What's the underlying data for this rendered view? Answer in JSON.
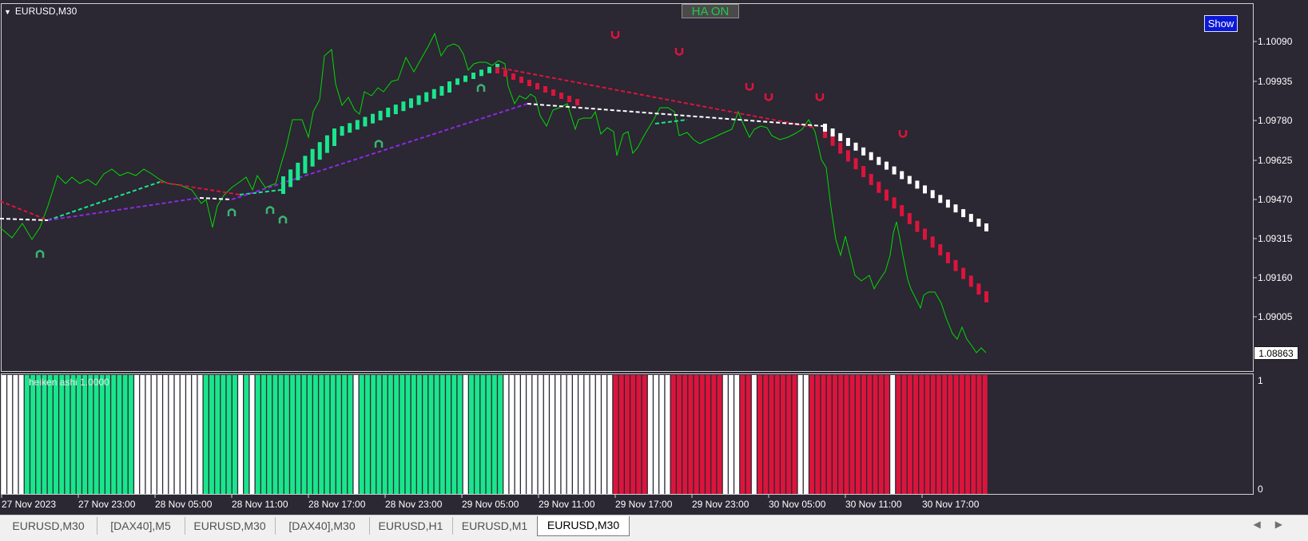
{
  "chart": {
    "symbol": "EURUSD,M30",
    "ha_button": "HA ON",
    "show_button": "Show",
    "current_price": "1.08863",
    "y_axis_ticks": [
      "1.10090",
      "1.09935",
      "1.09780",
      "1.09625",
      "1.09470",
      "1.09315",
      "1.09160",
      "1.09005"
    ],
    "x_axis_ticks": [
      "27 Nov 2023",
      "27 Nov 23:00",
      "28 Nov 05:00",
      "28 Nov 11:00",
      "28 Nov 17:00",
      "28 Nov 23:00",
      "29 Nov 05:00",
      "29 Nov 11:00",
      "29 Nov 17:00",
      "29 Nov 23:00",
      "30 Nov 05:00",
      "30 Nov 11:00",
      "30 Nov 17:00"
    ],
    "colors": {
      "background": "#2b2733",
      "bull": "#19e68c",
      "bear": "#dc143c",
      "neutral": "#ffffff",
      "slow_ma": "#8a2be2",
      "price_line": "#00dc00",
      "arrow": "#3cb371"
    }
  },
  "subwindow": {
    "label": "heiken ashi 1.0000",
    "axis_top": "1",
    "axis_bottom": "0",
    "bars": [
      "w",
      "w",
      "w",
      "w",
      "g",
      "g",
      "g",
      "g",
      "g",
      "g",
      "g",
      "g",
      "g",
      "g",
      "g",
      "g",
      "g",
      "g",
      "g",
      "g",
      "g",
      "g",
      "g",
      "w",
      "w",
      "w",
      "w",
      "w",
      "w",
      "w",
      "w",
      "w",
      "w",
      "w",
      "w",
      "g",
      "g",
      "g",
      "g",
      "g",
      "g",
      "w",
      "g",
      "w",
      "g",
      "g",
      "g",
      "g",
      "g",
      "g",
      "g",
      "g",
      "g",
      "g",
      "g",
      "g",
      "g",
      "g",
      "g",
      "g",
      "g",
      "w",
      "g",
      "g",
      "g",
      "g",
      "g",
      "g",
      "g",
      "g",
      "g",
      "g",
      "g",
      "g",
      "g",
      "g",
      "g",
      "g",
      "g",
      "g",
      "w",
      "g",
      "g",
      "g",
      "g",
      "g",
      "g",
      "w",
      "w",
      "w",
      "w",
      "w",
      "w",
      "w",
      "w",
      "w",
      "w",
      "w",
      "w",
      "w",
      "w",
      "w",
      "w",
      "w",
      "w",
      "w",
      "r",
      "r",
      "r",
      "r",
      "r",
      "r",
      "w",
      "w",
      "w",
      "w",
      "r",
      "r",
      "r",
      "r",
      "r",
      "r",
      "r",
      "r",
      "r",
      "w",
      "w",
      "w",
      "r",
      "r",
      "w",
      "r",
      "r",
      "r",
      "r",
      "r",
      "r",
      "r",
      "w",
      "w",
      "r",
      "r",
      "r",
      "r",
      "r",
      "r",
      "r",
      "r",
      "r",
      "r",
      "r",
      "r",
      "r",
      "r",
      "w",
      "r",
      "r",
      "r",
      "r",
      "r",
      "r",
      "r",
      "r",
      "r",
      "r",
      "r",
      "r",
      "r",
      "r",
      "r",
      "r"
    ]
  },
  "tabs": [
    "EURUSD,M30",
    "[DAX40],M5",
    "EURUSD,M30",
    "[DAX40],M30",
    "EURUSD,H1",
    "EURUSD,M1",
    "EURUSD,M30"
  ],
  "active_tab": 6
}
